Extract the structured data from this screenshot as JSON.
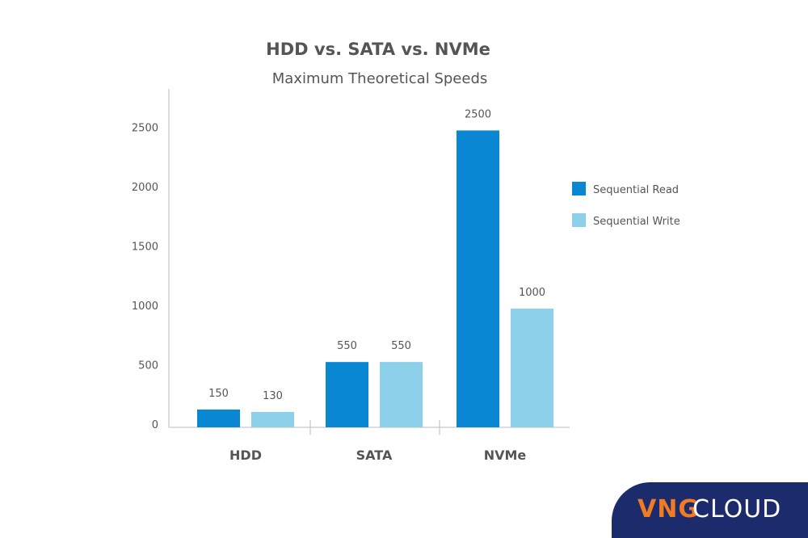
{
  "chart_data": {
    "type": "bar",
    "title": "HDD vs. SATA vs. NVMe",
    "subtitle": "Maximum Theoretical Speeds",
    "xlabel": "",
    "ylabel": "",
    "categories": [
      "HDD",
      "SATA",
      "NVMe"
    ],
    "series": [
      {
        "name": "Sequential Read",
        "values": [
          150,
          550,
          2500
        ],
        "color": "#0a87d2"
      },
      {
        "name": "Sequential Write",
        "values": [
          130,
          550,
          1000
        ],
        "color": "#8dd0ea"
      }
    ],
    "ylim": [
      0,
      2800
    ],
    "yticks": [
      0,
      500,
      1000,
      1500,
      2000,
      2500
    ],
    "grid": false,
    "legend": "right"
  },
  "logo": {
    "part1": "VNG",
    "part2": "CLOUD"
  }
}
